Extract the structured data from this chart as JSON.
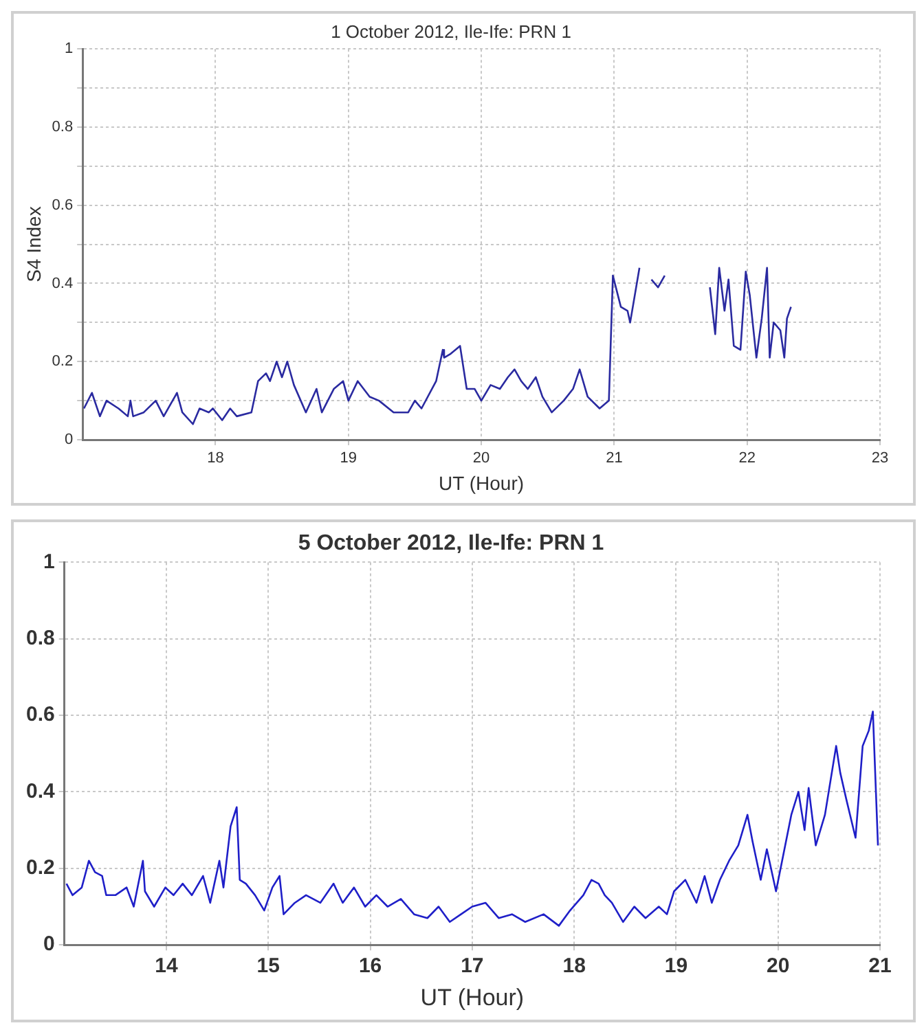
{
  "chart_data": [
    {
      "type": "line",
      "title": "1 October 2012, Ile-Ife: PRN 1",
      "xlabel": "UT (Hour)",
      "ylabel": "S4 Index",
      "xlim": [
        17,
        23
      ],
      "xticks": [
        18,
        19,
        20,
        21,
        22,
        23
      ],
      "ylim": [
        0,
        1
      ],
      "yticks": [
        0,
        {
          "value": 0.1,
          "label": null
        },
        0.2,
        {
          "value": 0.3,
          "label": null
        },
        0.4,
        {
          "value": 0.5,
          "label": null
        },
        0.6,
        {
          "value": 0.7,
          "label": null
        },
        0.8,
        {
          "value": 0.9,
          "label": null
        },
        1
      ],
      "grid": true,
      "series": [
        {
          "color": "#2a2aa0",
          "x": [
            17.01,
            17.07,
            17.13,
            17.18,
            17.27,
            17.34,
            17.36,
            17.38,
            17.46,
            17.55,
            17.61,
            17.71,
            17.75,
            17.83,
            17.88,
            17.95,
            17.98,
            18.05,
            18.11,
            18.16,
            18.27,
            18.32,
            18.38,
            18.41,
            18.46,
            18.5,
            18.54,
            18.59,
            18.68,
            18.76,
            18.8,
            18.89,
            18.96,
            19.0,
            19.07,
            19.16,
            19.23,
            19.34,
            19.45,
            19.5,
            19.55,
            19.66,
            19.71,
            19.72,
            19.77,
            19.84,
            19.89,
            19.95,
            20.0,
            20.07,
            20.14,
            20.2,
            20.25,
            20.3,
            20.35,
            20.41,
            20.46,
            20.53,
            20.62,
            20.69,
            20.74,
            20.8,
            20.89,
            20.96,
            20.99,
            21.05,
            21.1,
            21.12,
            21.19,
            21.23,
            21.28,
            21.33,
            21.38,
            21.55,
            21.72,
            21.76,
            21.79,
            21.83,
            21.86,
            21.9,
            21.95,
            21.99,
            22.02,
            22.07,
            22.11,
            22.15,
            22.17,
            22.2,
            22.25,
            22.28,
            22.3,
            22.33
          ],
          "values": [
            0.08,
            0.12,
            0.06,
            0.1,
            0.08,
            0.06,
            0.1,
            0.06,
            0.07,
            0.1,
            0.06,
            0.12,
            0.07,
            0.04,
            0.08,
            0.07,
            0.08,
            0.05,
            0.08,
            0.06,
            0.07,
            0.15,
            0.17,
            0.15,
            0.2,
            0.16,
            0.2,
            0.14,
            0.07,
            0.13,
            0.07,
            0.13,
            0.15,
            0.1,
            0.15,
            0.11,
            0.1,
            0.07,
            0.07,
            0.1,
            0.08,
            0.15,
            0.23,
            0.21,
            0.22,
            0.24,
            0.13,
            0.13,
            0.1,
            0.14,
            0.13,
            0.16,
            0.18,
            0.15,
            0.13,
            0.16,
            0.11,
            0.07,
            0.1,
            0.13,
            0.18,
            0.11,
            0.08,
            0.1,
            0.42,
            0.34,
            0.33,
            0.3,
            0.44,
            null,
            0.41,
            0.39,
            0.42,
            null,
            0.39,
            0.27,
            0.44,
            0.33,
            0.41,
            0.24,
            0.23,
            0.43,
            0.37,
            0.21,
            0.31,
            0.44,
            0.21,
            0.3,
            0.28,
            0.21,
            0.31,
            0.34
          ]
        }
      ]
    },
    {
      "type": "line",
      "title": "5 October 2012, Ile-Ife: PRN 1",
      "xlabel": "UT (Hour)",
      "xlim": [
        13,
        21
      ],
      "xticks": [
        14,
        15,
        16,
        17,
        18,
        19,
        20,
        21
      ],
      "ylim": [
        0,
        1
      ],
      "yticks": [
        0,
        0.2,
        0.4,
        0.6,
        0.8,
        1
      ],
      "grid": true,
      "series": [
        {
          "color": "#1f1fc8",
          "x": [
            13.02,
            13.08,
            13.17,
            13.24,
            13.3,
            13.37,
            13.41,
            13.5,
            13.61,
            13.68,
            13.77,
            13.79,
            13.88,
            13.99,
            14.07,
            14.16,
            14.25,
            14.36,
            14.43,
            14.52,
            14.56,
            14.63,
            14.69,
            14.72,
            14.78,
            14.87,
            14.96,
            15.04,
            15.11,
            15.15,
            15.26,
            15.37,
            15.51,
            15.64,
            15.73,
            15.84,
            15.95,
            16.06,
            16.17,
            16.3,
            16.43,
            16.56,
            16.67,
            16.78,
            16.89,
            17.0,
            17.13,
            17.26,
            17.39,
            17.52,
            17.7,
            17.85,
            17.96,
            18.09,
            18.17,
            18.24,
            18.3,
            18.37,
            18.48,
            18.59,
            18.7,
            18.83,
            18.91,
            18.98,
            19.09,
            19.2,
            19.28,
            19.35,
            19.43,
            19.52,
            19.61,
            19.7,
            19.75,
            19.83,
            19.89,
            19.98,
            20.04,
            20.13,
            20.2,
            20.26,
            20.3,
            20.37,
            20.46,
            20.57,
            20.61,
            20.67,
            20.76,
            20.83,
            20.89,
            20.93,
            20.98
          ],
          "values": [
            0.16,
            0.13,
            0.15,
            0.22,
            0.19,
            0.18,
            0.13,
            0.13,
            0.15,
            0.1,
            0.22,
            0.14,
            0.1,
            0.15,
            0.13,
            0.16,
            0.13,
            0.18,
            0.11,
            0.22,
            0.15,
            0.31,
            0.36,
            0.17,
            0.16,
            0.13,
            0.09,
            0.15,
            0.18,
            0.08,
            0.11,
            0.13,
            0.11,
            0.16,
            0.11,
            0.15,
            0.1,
            0.13,
            0.1,
            0.12,
            0.08,
            0.07,
            0.1,
            0.06,
            0.08,
            0.1,
            0.11,
            0.07,
            0.08,
            0.06,
            0.08,
            0.05,
            0.09,
            0.13,
            0.17,
            0.16,
            0.13,
            0.11,
            0.06,
            0.1,
            0.07,
            0.1,
            0.08,
            0.14,
            0.17,
            0.11,
            0.18,
            0.11,
            0.17,
            0.22,
            0.26,
            0.34,
            0.27,
            0.17,
            0.25,
            0.14,
            0.22,
            0.34,
            0.4,
            0.3,
            0.41,
            0.26,
            0.34,
            0.52,
            0.45,
            0.38,
            0.28,
            0.52,
            0.56,
            0.61,
            0.26
          ]
        }
      ]
    }
  ]
}
